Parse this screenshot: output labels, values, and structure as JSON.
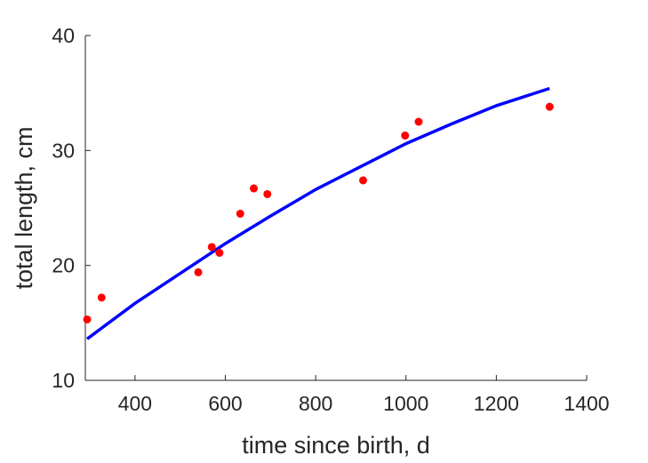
{
  "chart_data": {
    "type": "scatter",
    "xlabel": "time since birth, d",
    "ylabel": "total length, cm",
    "xlim": [
      290,
      1400
    ],
    "ylim": [
      10,
      40
    ],
    "xticks": [
      400,
      600,
      800,
      1000,
      1200,
      1400
    ],
    "yticks": [
      10,
      20,
      30,
      40
    ],
    "grid": false,
    "box": false,
    "series": [
      {
        "type": "scatter",
        "color": "#ff0000",
        "x": [
          294,
          326,
          540,
          570,
          587,
          633,
          663,
          693,
          905,
          998,
          1028,
          1318
        ],
        "y": [
          15.3,
          17.2,
          19.4,
          21.6,
          21.1,
          24.5,
          26.7,
          26.2,
          27.4,
          31.3,
          32.5,
          33.8
        ]
      },
      {
        "type": "line",
        "color": "#0000ff",
        "x": [
          294,
          400,
          500,
          600,
          700,
          800,
          900,
          1000,
          1100,
          1200,
          1318
        ],
        "y": [
          13.6,
          16.7,
          19.3,
          21.9,
          24.3,
          26.6,
          28.6,
          30.6,
          32.3,
          33.9,
          35.4
        ]
      }
    ]
  }
}
